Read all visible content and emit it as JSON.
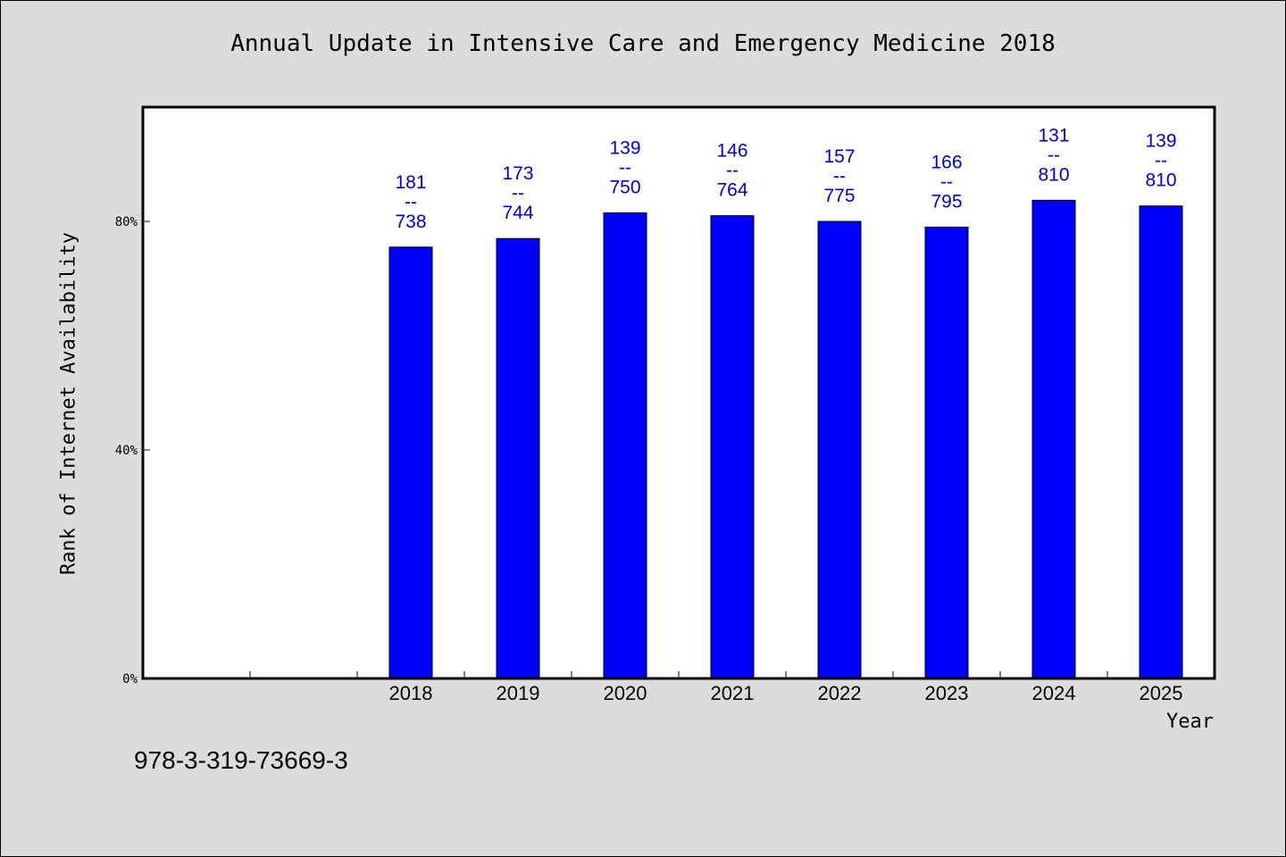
{
  "chart_data": {
    "type": "bar",
    "title": "Annual Update in Intensive Care and Emergency Medicine 2018",
    "xlabel": "Year",
    "ylabel": "Rank of Internet Availability",
    "categories": [
      "",
      "",
      "2018",
      "2019",
      "2020",
      "2021",
      "2022",
      "2023",
      "2024",
      "2025"
    ],
    "values": [
      null,
      null,
      75.5,
      77,
      81.5,
      81,
      80,
      79,
      83.7,
      82.7
    ],
    "data_labels": [
      null,
      null,
      [
        "181",
        "--",
        "738"
      ],
      [
        "173",
        "--",
        "744"
      ],
      [
        "139",
        "--",
        "750"
      ],
      [
        "146",
        "--",
        "764"
      ],
      [
        "157",
        "--",
        "775"
      ],
      [
        "166",
        "--",
        "795"
      ],
      [
        "131",
        "--",
        "810"
      ],
      [
        "139",
        "--",
        "810"
      ]
    ],
    "yticks": [
      0,
      40,
      80
    ],
    "ytick_labels": [
      "0%",
      "40%",
      "80%"
    ],
    "ylim": [
      0,
      100
    ],
    "grid": false,
    "colors": {
      "bar": "#0000ff",
      "data_label": "#0000cc",
      "background": "#dcdcdc",
      "plot_background": "#ffffff"
    }
  },
  "footer": {
    "isbn": "978-3-319-73669-3"
  }
}
